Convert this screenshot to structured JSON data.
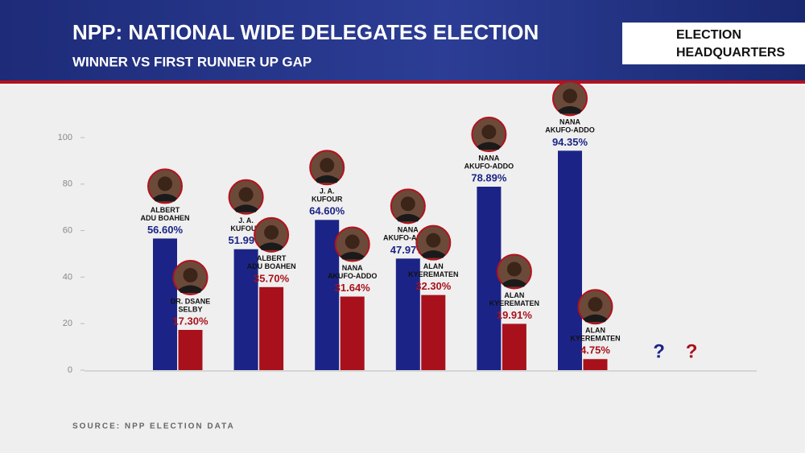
{
  "header": {
    "logo": [
      "ELECTION",
      "HEADQUARTERS"
    ]
  },
  "chart_data": {
    "type": "bar",
    "title": "NPP: NATIONAL WIDE DELEGATES ELECTION",
    "subtitle": "WINNER VS FIRST RUNNER UP GAP",
    "source": "SOURCE: NPP ELECTION DATA",
    "categories": [
      null,
      null,
      null,
      null,
      null,
      null,
      null
    ],
    "series": [
      {
        "color": "#1b2486",
        "values": [
          56.6,
          51.99,
          64.6,
          47.97,
          78.89,
          94.35,
          null
        ],
        "value_labels": [
          "56.60%",
          "51.99%",
          "64.60%",
          "47.97%",
          "78.89%",
          "94.35%",
          "?"
        ],
        "candidates": [
          [
            "ALBERT",
            "ADU BOAHEN"
          ],
          [
            "J. A.",
            "KUFOUR"
          ],
          [
            "J. A.",
            "KUFOUR"
          ],
          [
            "NANA",
            "AKUFO-ADDO"
          ],
          [
            "NANA",
            "AKUFO-ADDO"
          ],
          [
            "NANA",
            "AKUFO-ADDO"
          ],
          null
        ]
      },
      {
        "color": "#a8111b",
        "values": [
          17.3,
          35.7,
          31.64,
          32.3,
          19.91,
          4.75,
          null
        ],
        "value_labels": [
          "17.30%",
          "35.70%",
          "31.64%",
          "32.30%",
          "19.91%",
          "4.75%",
          "?"
        ],
        "candidates": [
          [
            "DR. DSANE",
            "SELBY"
          ],
          [
            "ALBERT",
            "ADU BOAHEN"
          ],
          [
            "NANA",
            "AKUFO-ADDO"
          ],
          [
            "ALAN",
            "KYEREMATEN"
          ],
          [
            "ALAN",
            "KYEREMATEN"
          ],
          [
            "ALAN",
            "KYEREMATEN"
          ],
          null
        ]
      }
    ],
    "ylim": [
      0,
      100
    ],
    "yticks": [
      0,
      20,
      40,
      60,
      80,
      100
    ],
    "grid": false
  }
}
